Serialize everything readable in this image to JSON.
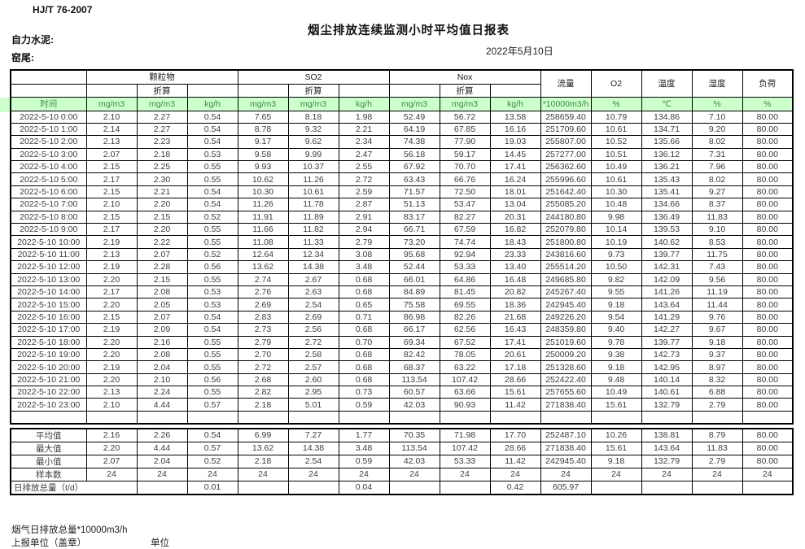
{
  "header": {
    "standard": "HJ/T 76-2007",
    "title": "烟尘排放连续监测小时平均值日报表",
    "company": "自力水泥:",
    "location": "窑尾:",
    "date": "2022年5月10日"
  },
  "table": {
    "groups": {
      "time": "时间",
      "pm": "颗粒物",
      "so2": "SO2",
      "nox": "Nox",
      "converted": "折算",
      "flow": "流量",
      "o2": "O2",
      "temperature": "温度",
      "humidity": "湿度",
      "load": "负荷"
    },
    "units": [
      "mg/m3",
      "mg/m3",
      "kg/h",
      "mg/m3",
      "mg/m3",
      "kg/h",
      "mg/m3",
      "mg/m3",
      "kg/h",
      "*10000m3/h",
      "%",
      "℃",
      "%",
      "%"
    ],
    "rows": [
      {
        "time": "2022-5-10 0:00",
        "values": [
          "2.10",
          "2.27",
          "0.54",
          "7.65",
          "8.18",
          "1.98",
          "52.49",
          "56.72",
          "13.58",
          "258659.40",
          "10.79",
          "134.86",
          "7.10",
          "80.00"
        ]
      },
      {
        "time": "2022-5-10 1:00",
        "values": [
          "2.14",
          "2.27",
          "0.54",
          "8.78",
          "9.32",
          "2.21",
          "64.19",
          "67.85",
          "16.16",
          "251709.60",
          "10.61",
          "134.71",
          "9.20",
          "80.00"
        ]
      },
      {
        "time": "2022-5-10 2:00",
        "values": [
          "2.13",
          "2.23",
          "0.54",
          "9.17",
          "9.62",
          "2.34",
          "74.38",
          "77.90",
          "19.03",
          "255807.00",
          "10.52",
          "135.66",
          "8.02",
          "80.00"
        ]
      },
      {
        "time": "2022-5-10 3:00",
        "values": [
          "2.07",
          "2.18",
          "0.53",
          "9.58",
          "9.99",
          "2.47",
          "56.18",
          "59.17",
          "14.45",
          "257277.00",
          "10.51",
          "136.12",
          "7.31",
          "80.00"
        ]
      },
      {
        "time": "2022-5-10 4:00",
        "values": [
          "2.15",
          "2.25",
          "0.55",
          "9.93",
          "10.37",
          "2.55",
          "67.92",
          "70.70",
          "17.41",
          "256362.60",
          "10.49",
          "136.21",
          "7.96",
          "80.00"
        ]
      },
      {
        "time": "2022-5-10 5:00",
        "values": [
          "2.17",
          "2.30",
          "0.55",
          "10.62",
          "11.26",
          "2.72",
          "63.43",
          "66.76",
          "16.24",
          "255996.60",
          "10.61",
          "135.43",
          "8.02",
          "80.00"
        ]
      },
      {
        "time": "2022-5-10 6:00",
        "values": [
          "2.15",
          "2.21",
          "0.54",
          "10.30",
          "10.61",
          "2.59",
          "71.57",
          "72.50",
          "18.01",
          "251642.40",
          "10.30",
          "135.41",
          "9.27",
          "80.00"
        ]
      },
      {
        "time": "2022-5-10 7:00",
        "values": [
          "2.10",
          "2.20",
          "0.54",
          "11.26",
          "11.78",
          "2.87",
          "51.13",
          "53.47",
          "13.04",
          "255085.20",
          "10.48",
          "134.66",
          "8.37",
          "80.00"
        ]
      },
      {
        "time": "2022-5-10 8:00",
        "values": [
          "2.15",
          "2.15",
          "0.52",
          "11.91",
          "11.89",
          "2.91",
          "83.17",
          "82.27",
          "20.31",
          "244180.80",
          "9.98",
          "136.49",
          "11.83",
          "80.00"
        ]
      },
      {
        "time": "2022-5-10 9:00",
        "values": [
          "2.17",
          "2.20",
          "0.55",
          "11.66",
          "11.82",
          "2.94",
          "66.71",
          "67.59",
          "16.82",
          "252079.80",
          "10.14",
          "139.53",
          "9.10",
          "80.00"
        ]
      },
      {
        "time": "2022-5-10 10:00",
        "values": [
          "2.19",
          "2.22",
          "0.55",
          "11.08",
          "11.33",
          "2.79",
          "73.20",
          "74.74",
          "18.43",
          "251800.80",
          "10.19",
          "140.62",
          "8.53",
          "80.00"
        ]
      },
      {
        "time": "2022-5-10 11:00",
        "values": [
          "2.13",
          "2.07",
          "0.52",
          "12.64",
          "12.34",
          "3.08",
          "95.68",
          "92.94",
          "23.33",
          "243816.60",
          "9.73",
          "139.77",
          "11.75",
          "80.00"
        ]
      },
      {
        "time": "2022-5-10 12:00",
        "values": [
          "2.19",
          "2.28",
          "0.56",
          "13.62",
          "14.38",
          "3.48",
          "52.44",
          "53.33",
          "13.40",
          "255514.20",
          "10.50",
          "142.31",
          "7.43",
          "80.00"
        ]
      },
      {
        "time": "2022-5-10 13:00",
        "values": [
          "2.20",
          "2.15",
          "0.55",
          "2.74",
          "2.67",
          "0.68",
          "66.01",
          "64.86",
          "16.48",
          "249685.80",
          "9.82",
          "142.09",
          "9.56",
          "80.00"
        ]
      },
      {
        "time": "2022-5-10 14:00",
        "values": [
          "2.17",
          "2.08",
          "0.53",
          "2.76",
          "2.63",
          "0.68",
          "84.89",
          "81.45",
          "20.82",
          "245267.40",
          "9.55",
          "141.26",
          "11.19",
          "80.00"
        ]
      },
      {
        "time": "2022-5-10 15:00",
        "values": [
          "2.20",
          "2.05",
          "0.53",
          "2.69",
          "2.54",
          "0.65",
          "75.58",
          "69.55",
          "18.36",
          "242945.40",
          "9.18",
          "143.64",
          "11.44",
          "80.00"
        ]
      },
      {
        "time": "2022-5-10 16:00",
        "values": [
          "2.15",
          "2.07",
          "0.54",
          "2.83",
          "2.69",
          "0.71",
          "86.98",
          "82.26",
          "21.68",
          "249226.20",
          "9.54",
          "141.29",
          "9.76",
          "80.00"
        ]
      },
      {
        "time": "2022-5-10 17:00",
        "values": [
          "2.19",
          "2.09",
          "0.54",
          "2.73",
          "2.56",
          "0.68",
          "66.17",
          "62.56",
          "16.43",
          "248359.80",
          "9.40",
          "142.27",
          "9.67",
          "80.00"
        ]
      },
      {
        "time": "2022-5-10 18:00",
        "values": [
          "2.20",
          "2.16",
          "0.55",
          "2.79",
          "2.72",
          "0.70",
          "69.34",
          "67.52",
          "17.41",
          "251019.60",
          "9.78",
          "139.77",
          "9.18",
          "80.00"
        ]
      },
      {
        "time": "2022-5-10 19:00",
        "values": [
          "2.20",
          "2.08",
          "0.55",
          "2.70",
          "2.58",
          "0.68",
          "82.42",
          "78.05",
          "20.61",
          "250009.20",
          "9.38",
          "142.73",
          "9.37",
          "80.00"
        ]
      },
      {
        "time": "2022-5-10 20:00",
        "values": [
          "2.19",
          "2.04",
          "0.55",
          "2.72",
          "2.57",
          "0.68",
          "68.37",
          "63.22",
          "17.18",
          "251328.60",
          "9.18",
          "142.95",
          "8.97",
          "80.00"
        ]
      },
      {
        "time": "2022-5-10 21:00",
        "values": [
          "2.20",
          "2.10",
          "0.56",
          "2.68",
          "2.60",
          "0.68",
          "113.54",
          "107.42",
          "28.66",
          "252422.40",
          "9.48",
          "140.14",
          "8.32",
          "80.00"
        ]
      },
      {
        "time": "2022-5-10 22:00",
        "values": [
          "2.13",
          "2.24",
          "0.55",
          "2.82",
          "2.95",
          "0.73",
          "60.57",
          "63.66",
          "15.61",
          "257655.60",
          "10.49",
          "140.61",
          "6.88",
          "80.00"
        ]
      },
      {
        "time": "2022-5-10 23:00",
        "values": [
          "2.10",
          "4.44",
          "0.57",
          "2.18",
          "5.01",
          "0.59",
          "42.03",
          "90.93",
          "11.42",
          "271838.40",
          "15.61",
          "132.79",
          "2.79",
          "80.00"
        ]
      }
    ],
    "summary": [
      {
        "label": "平均值",
        "values": [
          "2.16",
          "2.26",
          "0.54",
          "6.99",
          "7.27",
          "1.77",
          "70.35",
          "71.98",
          "17.70",
          "252487.10",
          "10.26",
          "138.81",
          "8.79",
          "80.00"
        ]
      },
      {
        "label": "最大值",
        "values": [
          "2.20",
          "4.44",
          "0.57",
          "13.62",
          "14.38",
          "3.48",
          "113.54",
          "107.42",
          "28.66",
          "271838.40",
          "15.61",
          "143.64",
          "11.83",
          "80.00"
        ]
      },
      {
        "label": "最小值",
        "values": [
          "2.07",
          "2.04",
          "0.52",
          "2.18",
          "2.54",
          "0.59",
          "42.03",
          "53.33",
          "11.42",
          "242945.40",
          "9.18",
          "132.79",
          "2.79",
          "80.00"
        ]
      },
      {
        "label": "样本数",
        "values": [
          "24",
          "24",
          "24",
          "24",
          "24",
          "24",
          "24",
          "24",
          "24",
          "24",
          "24",
          "24",
          "24",
          "24"
        ]
      }
    ],
    "total_row": {
      "label": "日排放总量（t/d）",
      "values": [
        "",
        "0.01",
        "",
        "",
        "0.04",
        "",
        "",
        "0.42",
        "605.97",
        "",
        "",
        "",
        ""
      ]
    }
  },
  "footer": {
    "note": "烟气日排放总量*10000m3/h",
    "report_unit": "上报单位（盖章）",
    "unit_label": "单位"
  }
}
